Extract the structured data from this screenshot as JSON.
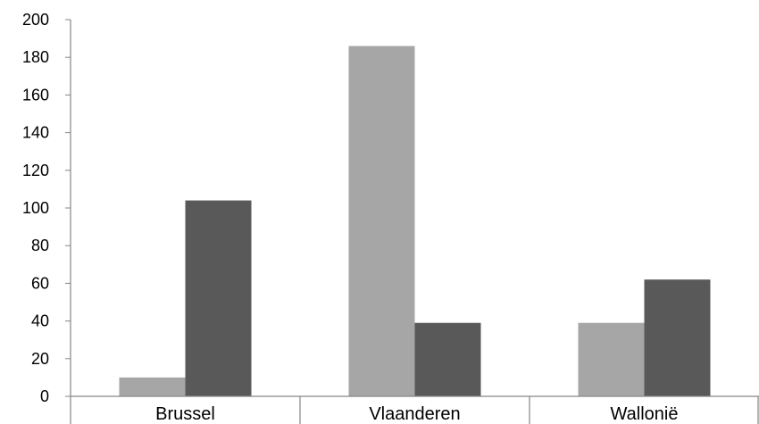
{
  "chart_data": {
    "type": "bar",
    "categories": [
      "Brussel",
      "Vlaanderen",
      "Wallonië"
    ],
    "series": [
      {
        "values": [
          10,
          186,
          39
        ],
        "color": "#a6a6a6"
      },
      {
        "values": [
          104,
          39,
          62
        ],
        "color": "#595959"
      }
    ],
    "y_ticks": [
      0,
      20,
      40,
      60,
      80,
      100,
      120,
      140,
      160,
      180,
      200
    ],
    "ylim": [
      0,
      200
    ],
    "title": "",
    "xlabel": "",
    "ylabel": "",
    "grid": false,
    "legend": "none",
    "axis_color": "#868686"
  }
}
